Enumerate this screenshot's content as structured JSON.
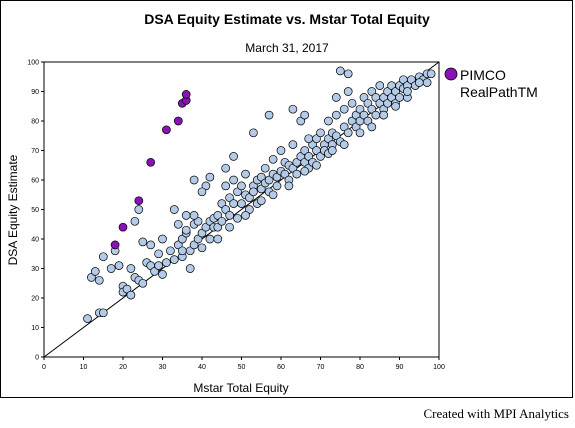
{
  "footer": "Created with MPI Analytics",
  "chart_data": {
    "type": "scatter",
    "title": "DSA Equity Estimate vs. Mstar Total Equity",
    "subtitle": "March 31, 2017",
    "xlabel": "Mstar Total Equity",
    "ylabel": "DSA Equity Estimate",
    "xlim": [
      0,
      100
    ],
    "ylim": [
      0,
      100
    ],
    "xticks": [
      "0",
      "10",
      "20",
      "30",
      "40",
      "50",
      "60",
      "70",
      "80",
      "90",
      "100"
    ],
    "yticks": [
      "0",
      "10",
      "20",
      "30",
      "40",
      "50",
      "60",
      "70",
      "80",
      "90",
      "100"
    ],
    "grid": false,
    "reference_line": "y = x",
    "legend": {
      "placement": "right",
      "label_line1": "PIMCO",
      "label_line2": "RealPathTM"
    },
    "colors": {
      "background_points": "#b4cbe8",
      "highlight_points": "#8a10b8",
      "outline": "#000000"
    },
    "series": [
      {
        "name": "",
        "points": [
          [
            11,
            13
          ],
          [
            14,
            15
          ],
          [
            15,
            15
          ],
          [
            12,
            27
          ],
          [
            13,
            29
          ],
          [
            14,
            26
          ],
          [
            15,
            34
          ],
          [
            17,
            30
          ],
          [
            18,
            36
          ],
          [
            19,
            31
          ],
          [
            20,
            24
          ],
          [
            20,
            22
          ],
          [
            21,
            23
          ],
          [
            22,
            21
          ],
          [
            22,
            30
          ],
          [
            23,
            27
          ],
          [
            24,
            26
          ],
          [
            23,
            46
          ],
          [
            24,
            50
          ],
          [
            25,
            25
          ],
          [
            25,
            39
          ],
          [
            26,
            32
          ],
          [
            27,
            38
          ],
          [
            27,
            31
          ],
          [
            28,
            29
          ],
          [
            29,
            31
          ],
          [
            30,
            28
          ],
          [
            29,
            35
          ],
          [
            30,
            40
          ],
          [
            31,
            32
          ],
          [
            32,
            36
          ],
          [
            33,
            33
          ],
          [
            33,
            50
          ],
          [
            34,
            38
          ],
          [
            34,
            45
          ],
          [
            35,
            34
          ],
          [
            35,
            40
          ],
          [
            36,
            42
          ],
          [
            36,
            48
          ],
          [
            37,
            30
          ],
          [
            37,
            36
          ],
          [
            38,
            38
          ],
          [
            38,
            45
          ],
          [
            39,
            40
          ],
          [
            40,
            42
          ],
          [
            40,
            37
          ],
          [
            41,
            44
          ],
          [
            41,
            58
          ],
          [
            42,
            40
          ],
          [
            42,
            46
          ],
          [
            43,
            44
          ],
          [
            43,
            47
          ],
          [
            44,
            48
          ],
          [
            44,
            44
          ],
          [
            45,
            46
          ],
          [
            45,
            52
          ],
          [
            46,
            50
          ],
          [
            46,
            58
          ],
          [
            47,
            54
          ],
          [
            47,
            48
          ],
          [
            48,
            52
          ],
          [
            48,
            60
          ],
          [
            49,
            56
          ],
          [
            49,
            47
          ],
          [
            50,
            52
          ],
          [
            50,
            58
          ],
          [
            51,
            55
          ],
          [
            51,
            62
          ],
          [
            52,
            54
          ],
          [
            52,
            50
          ],
          [
            53,
            58
          ],
          [
            53,
            56
          ],
          [
            54,
            60
          ],
          [
            54,
            52
          ],
          [
            55,
            57
          ],
          [
            55,
            61
          ],
          [
            56,
            59
          ],
          [
            56,
            64
          ],
          [
            57,
            60
          ],
          [
            57,
            56
          ],
          [
            58,
            62
          ],
          [
            58,
            67
          ],
          [
            59,
            61
          ],
          [
            59,
            58
          ],
          [
            60,
            63
          ],
          [
            60,
            70
          ],
          [
            61,
            62
          ],
          [
            61,
            66
          ],
          [
            62,
            65
          ],
          [
            62,
            60
          ],
          [
            63,
            64
          ],
          [
            63,
            72
          ],
          [
            64,
            66
          ],
          [
            64,
            62
          ],
          [
            65,
            68
          ],
          [
            65,
            80
          ],
          [
            66,
            66
          ],
          [
            66,
            70
          ],
          [
            67,
            68
          ],
          [
            67,
            64
          ],
          [
            68,
            72
          ],
          [
            68,
            66
          ],
          [
            69,
            70
          ],
          [
            69,
            74
          ],
          [
            70,
            68
          ],
          [
            70,
            76
          ],
          [
            71,
            72
          ],
          [
            71,
            70
          ],
          [
            72,
            74
          ],
          [
            72,
            69
          ],
          [
            73,
            76
          ],
          [
            73,
            72
          ],
          [
            74,
            75
          ],
          [
            74,
            82
          ],
          [
            75,
            73
          ],
          [
            75,
            97
          ],
          [
            76,
            78
          ],
          [
            76,
            84
          ],
          [
            77,
            76
          ],
          [
            77,
            90
          ],
          [
            78,
            80
          ],
          [
            78,
            86
          ],
          [
            79,
            78
          ],
          [
            79,
            82
          ],
          [
            80,
            84
          ],
          [
            80,
            80
          ],
          [
            81,
            82
          ],
          [
            81,
            88
          ],
          [
            82,
            86
          ],
          [
            82,
            80
          ],
          [
            83,
            84
          ],
          [
            83,
            90
          ],
          [
            84,
            88
          ],
          [
            84,
            82
          ],
          [
            85,
            86
          ],
          [
            85,
            92
          ],
          [
            86,
            88
          ],
          [
            86,
            84
          ],
          [
            87,
            90
          ],
          [
            87,
            86
          ],
          [
            88,
            88
          ],
          [
            88,
            92
          ],
          [
            89,
            90
          ],
          [
            89,
            86
          ],
          [
            90,
            92
          ],
          [
            90,
            88
          ],
          [
            91,
            91
          ],
          [
            91,
            94
          ],
          [
            92,
            92
          ],
          [
            92,
            88
          ],
          [
            93,
            94
          ],
          [
            94,
            92
          ],
          [
            95,
            95
          ],
          [
            96,
            94
          ],
          [
            97,
            96
          ],
          [
            97,
            93
          ],
          [
            98,
            96
          ],
          [
            77,
            96
          ],
          [
            38,
            60
          ],
          [
            40,
            56
          ],
          [
            42,
            61
          ],
          [
            46,
            64
          ],
          [
            48,
            68
          ],
          [
            53,
            76
          ],
          [
            57,
            82
          ],
          [
            63,
            84
          ],
          [
            66,
            82
          ],
          [
            67,
            74
          ],
          [
            72,
            80
          ],
          [
            74,
            88
          ],
          [
            39,
            46
          ],
          [
            44,
            40
          ],
          [
            47,
            44
          ],
          [
            51,
            48
          ],
          [
            55,
            53
          ],
          [
            58,
            55
          ],
          [
            62,
            58
          ],
          [
            66,
            63
          ],
          [
            69,
            65
          ],
          [
            73,
            70
          ],
          [
            76,
            72
          ],
          [
            80,
            76
          ],
          [
            83,
            78
          ],
          [
            86,
            82
          ],
          [
            89,
            85
          ],
          [
            92,
            90
          ],
          [
            95,
            93
          ],
          [
            35,
            36
          ],
          [
            36,
            43
          ],
          [
            38,
            48
          ]
        ]
      },
      {
        "name": "PIMCO RealPathTM",
        "points": [
          [
            18,
            38
          ],
          [
            20,
            44
          ],
          [
            24,
            53
          ],
          [
            27,
            66
          ],
          [
            31,
            77
          ],
          [
            34,
            80
          ],
          [
            35,
            86
          ],
          [
            36,
            87
          ],
          [
            36,
            89
          ]
        ]
      }
    ]
  }
}
